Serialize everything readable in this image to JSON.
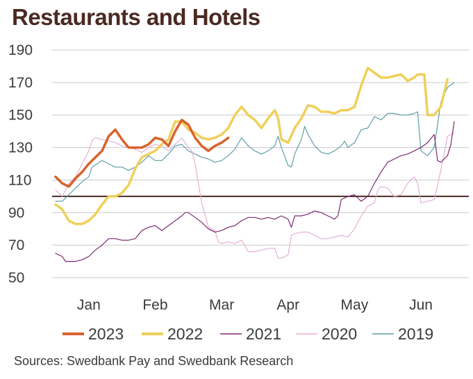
{
  "chart_data": {
    "type": "line",
    "title": "Restaurants and Hotels",
    "source": "Sources: Swedbank Pay and Swedbank Research",
    "xlabel": "",
    "ylabel": "",
    "ylim": [
      50,
      190
    ],
    "xlim": [
      0,
      6.2
    ],
    "yticks": [
      190,
      170,
      150,
      130,
      110,
      90,
      70,
      50
    ],
    "xticks": [
      {
        "label": "Jan",
        "x": 0.5
      },
      {
        "label": "Feb",
        "x": 1.5
      },
      {
        "label": "Mar",
        "x": 2.5
      },
      {
        "label": "Apr",
        "x": 3.5
      },
      {
        "label": "May",
        "x": 4.5
      },
      {
        "label": "Jun",
        "x": 5.5
      }
    ],
    "reference_line": 100,
    "grid": "horizontal",
    "legend_position": "bottom",
    "series": [
      {
        "name": "2019",
        "color": "#5e9ea6",
        "width": 1.2,
        "points": [
          [
            0,
            97
          ],
          [
            0.1,
            97
          ],
          [
            0.2,
            101
          ],
          [
            0.3,
            105
          ],
          [
            0.4,
            109
          ],
          [
            0.5,
            112
          ],
          [
            0.55,
            118
          ],
          [
            0.7,
            122
          ],
          [
            0.8,
            120
          ],
          [
            0.9,
            118
          ],
          [
            1.0,
            118
          ],
          [
            1.1,
            116
          ],
          [
            1.2,
            118
          ],
          [
            1.3,
            121
          ],
          [
            1.4,
            125
          ],
          [
            1.5,
            122
          ],
          [
            1.6,
            122
          ],
          [
            1.7,
            126
          ],
          [
            1.8,
            131
          ],
          [
            1.9,
            132
          ],
          [
            2.0,
            128
          ],
          [
            2.1,
            126
          ],
          [
            2.2,
            124
          ],
          [
            2.3,
            123
          ],
          [
            2.4,
            121
          ],
          [
            2.5,
            122
          ],
          [
            2.6,
            125
          ],
          [
            2.7,
            129
          ],
          [
            2.8,
            136
          ],
          [
            2.9,
            131
          ],
          [
            3.0,
            128
          ],
          [
            3.1,
            126
          ],
          [
            3.2,
            128
          ],
          [
            3.3,
            131
          ],
          [
            3.35,
            137
          ],
          [
            3.4,
            130
          ],
          [
            3.5,
            119
          ],
          [
            3.55,
            118
          ],
          [
            3.6,
            126
          ],
          [
            3.7,
            135
          ],
          [
            3.75,
            143
          ],
          [
            3.8,
            138
          ],
          [
            3.9,
            131
          ],
          [
            4.0,
            127
          ],
          [
            4.1,
            126
          ],
          [
            4.2,
            128
          ],
          [
            4.3,
            131
          ],
          [
            4.35,
            134
          ],
          [
            4.4,
            130
          ],
          [
            4.5,
            133
          ],
          [
            4.6,
            141
          ],
          [
            4.7,
            142
          ],
          [
            4.8,
            149
          ],
          [
            4.9,
            147
          ],
          [
            5.0,
            151
          ],
          [
            5.1,
            151
          ],
          [
            5.2,
            150
          ],
          [
            5.3,
            150
          ],
          [
            5.4,
            151
          ],
          [
            5.45,
            152
          ],
          [
            5.5,
            128
          ],
          [
            5.6,
            125
          ],
          [
            5.7,
            130
          ],
          [
            5.8,
            158
          ],
          [
            5.9,
            167
          ],
          [
            6.0,
            170
          ]
        ]
      },
      {
        "name": "2020",
        "color": "#e3b0d6",
        "width": 1.2,
        "points": [
          [
            0,
            104
          ],
          [
            0.1,
            100
          ],
          [
            0.2,
            108
          ],
          [
            0.3,
            112
          ],
          [
            0.4,
            120
          ],
          [
            0.5,
            128
          ],
          [
            0.55,
            134
          ],
          [
            0.6,
            136
          ],
          [
            0.7,
            135
          ],
          [
            0.8,
            134
          ],
          [
            0.9,
            133
          ],
          [
            1.0,
            131
          ],
          [
            1.1,
            130
          ],
          [
            1.2,
            129
          ],
          [
            1.3,
            127
          ],
          [
            1.4,
            130
          ],
          [
            1.5,
            132
          ],
          [
            1.6,
            131
          ],
          [
            1.7,
            128
          ],
          [
            1.8,
            132
          ],
          [
            1.9,
            136
          ],
          [
            2.0,
            130
          ],
          [
            2.05,
            128
          ],
          [
            2.1,
            120
          ],
          [
            2.2,
            96
          ],
          [
            2.3,
            81
          ],
          [
            2.4,
            79
          ],
          [
            2.45,
            72
          ],
          [
            2.5,
            71
          ],
          [
            2.6,
            72
          ],
          [
            2.7,
            71
          ],
          [
            2.8,
            73
          ],
          [
            2.9,
            66
          ],
          [
            3.0,
            66
          ],
          [
            3.1,
            67
          ],
          [
            3.2,
            68
          ],
          [
            3.3,
            68
          ],
          [
            3.35,
            62
          ],
          [
            3.4,
            62
          ],
          [
            3.5,
            64
          ],
          [
            3.55,
            76
          ],
          [
            3.6,
            77
          ],
          [
            3.7,
            78
          ],
          [
            3.8,
            78
          ],
          [
            3.9,
            76
          ],
          [
            4.0,
            74
          ],
          [
            4.1,
            74
          ],
          [
            4.2,
            75
          ],
          [
            4.3,
            76
          ],
          [
            4.4,
            75
          ],
          [
            4.5,
            80
          ],
          [
            4.6,
            88
          ],
          [
            4.7,
            94
          ],
          [
            4.8,
            96
          ],
          [
            4.85,
            104
          ],
          [
            4.9,
            106
          ],
          [
            5.0,
            105
          ],
          [
            5.1,
            100
          ],
          [
            5.2,
            101
          ],
          [
            5.3,
            108
          ],
          [
            5.4,
            112
          ],
          [
            5.45,
            108
          ],
          [
            5.5,
            96
          ],
          [
            5.6,
            97
          ],
          [
            5.7,
            98
          ],
          [
            5.8,
            116
          ],
          [
            5.9,
            137
          ],
          [
            6.0,
            139
          ]
        ]
      },
      {
        "name": "2021",
        "color": "#7a2a6f",
        "width": 1.2,
        "points": [
          [
            0,
            65
          ],
          [
            0.1,
            63
          ],
          [
            0.15,
            60
          ],
          [
            0.3,
            60
          ],
          [
            0.4,
            61
          ],
          [
            0.5,
            63
          ],
          [
            0.6,
            67
          ],
          [
            0.7,
            70
          ],
          [
            0.8,
            74
          ],
          [
            0.9,
            74
          ],
          [
            1.0,
            73
          ],
          [
            1.1,
            73
          ],
          [
            1.2,
            74
          ],
          [
            1.3,
            79
          ],
          [
            1.4,
            81
          ],
          [
            1.5,
            82
          ],
          [
            1.6,
            79
          ],
          [
            1.7,
            82
          ],
          [
            1.8,
            85
          ],
          [
            1.9,
            88
          ],
          [
            1.95,
            90
          ],
          [
            2.0,
            90
          ],
          [
            2.1,
            87
          ],
          [
            2.2,
            84
          ],
          [
            2.3,
            80
          ],
          [
            2.4,
            78
          ],
          [
            2.5,
            79
          ],
          [
            2.6,
            81
          ],
          [
            2.7,
            82
          ],
          [
            2.8,
            85
          ],
          [
            2.9,
            87
          ],
          [
            3.0,
            87
          ],
          [
            3.1,
            86
          ],
          [
            3.2,
            87
          ],
          [
            3.3,
            86
          ],
          [
            3.4,
            88
          ],
          [
            3.5,
            86
          ],
          [
            3.55,
            81
          ],
          [
            3.6,
            88
          ],
          [
            3.7,
            88
          ],
          [
            3.8,
            89
          ],
          [
            3.9,
            91
          ],
          [
            4.0,
            90
          ],
          [
            4.1,
            88
          ],
          [
            4.2,
            86
          ],
          [
            4.25,
            88
          ],
          [
            4.3,
            98
          ],
          [
            4.4,
            100
          ],
          [
            4.5,
            101
          ],
          [
            4.6,
            97
          ],
          [
            4.7,
            100
          ],
          [
            4.8,
            108
          ],
          [
            4.9,
            115
          ],
          [
            5.0,
            121
          ],
          [
            5.1,
            123
          ],
          [
            5.2,
            125
          ],
          [
            5.3,
            126
          ],
          [
            5.4,
            128
          ],
          [
            5.5,
            130
          ],
          [
            5.6,
            133
          ],
          [
            5.7,
            138
          ],
          [
            5.75,
            122
          ],
          [
            5.8,
            121
          ],
          [
            5.9,
            125
          ],
          [
            5.95,
            132
          ],
          [
            6.0,
            146
          ]
        ]
      },
      {
        "name": "2022",
        "color": "#f0cf5a",
        "width": 3.5,
        "points": [
          [
            0,
            95
          ],
          [
            0.1,
            92
          ],
          [
            0.2,
            85
          ],
          [
            0.3,
            83
          ],
          [
            0.4,
            83
          ],
          [
            0.5,
            85
          ],
          [
            0.6,
            89
          ],
          [
            0.7,
            95
          ],
          [
            0.8,
            100
          ],
          [
            0.9,
            100
          ],
          [
            1.0,
            102
          ],
          [
            1.1,
            107
          ],
          [
            1.2,
            117
          ],
          [
            1.3,
            124
          ],
          [
            1.4,
            126
          ],
          [
            1.5,
            128
          ],
          [
            1.6,
            132
          ],
          [
            1.7,
            135
          ],
          [
            1.8,
            146
          ],
          [
            1.9,
            146
          ],
          [
            2.0,
            141
          ],
          [
            2.1,
            139
          ],
          [
            2.2,
            136
          ],
          [
            2.3,
            135
          ],
          [
            2.4,
            136
          ],
          [
            2.5,
            138
          ],
          [
            2.6,
            142
          ],
          [
            2.7,
            150
          ],
          [
            2.8,
            155
          ],
          [
            2.9,
            150
          ],
          [
            3.0,
            147
          ],
          [
            3.1,
            142
          ],
          [
            3.2,
            148
          ],
          [
            3.3,
            153
          ],
          [
            3.35,
            148
          ],
          [
            3.4,
            135
          ],
          [
            3.5,
            133
          ],
          [
            3.6,
            142
          ],
          [
            3.7,
            148
          ],
          [
            3.8,
            156
          ],
          [
            3.9,
            155
          ],
          [
            4.0,
            152
          ],
          [
            4.1,
            152
          ],
          [
            4.2,
            151
          ],
          [
            4.3,
            153
          ],
          [
            4.4,
            153
          ],
          [
            4.5,
            155
          ],
          [
            4.6,
            168
          ],
          [
            4.7,
            179
          ],
          [
            4.8,
            176
          ],
          [
            4.9,
            173
          ],
          [
            5.0,
            173
          ],
          [
            5.1,
            174
          ],
          [
            5.2,
            175
          ],
          [
            5.3,
            171
          ],
          [
            5.4,
            173
          ],
          [
            5.45,
            175
          ],
          [
            5.5,
            175
          ],
          [
            5.55,
            175
          ],
          [
            5.6,
            150
          ],
          [
            5.7,
            150
          ],
          [
            5.8,
            155
          ],
          [
            5.9,
            172
          ]
        ]
      },
      {
        "name": "2023",
        "color": "#d9622b",
        "width": 3.5,
        "points": [
          [
            0,
            112
          ],
          [
            0.1,
            108
          ],
          [
            0.2,
            106
          ],
          [
            0.3,
            111
          ],
          [
            0.4,
            115
          ],
          [
            0.5,
            120
          ],
          [
            0.6,
            124
          ],
          [
            0.7,
            128
          ],
          [
            0.8,
            137
          ],
          [
            0.9,
            141
          ],
          [
            1.0,
            135
          ],
          [
            1.1,
            130
          ],
          [
            1.2,
            130
          ],
          [
            1.3,
            130
          ],
          [
            1.4,
            132
          ],
          [
            1.5,
            136
          ],
          [
            1.6,
            135
          ],
          [
            1.7,
            131
          ],
          [
            1.8,
            140
          ],
          [
            1.9,
            147
          ],
          [
            2.0,
            144
          ],
          [
            2.1,
            136
          ],
          [
            2.2,
            131
          ],
          [
            2.3,
            128
          ],
          [
            2.4,
            131
          ],
          [
            2.5,
            133
          ],
          [
            2.6,
            136
          ]
        ]
      }
    ]
  }
}
